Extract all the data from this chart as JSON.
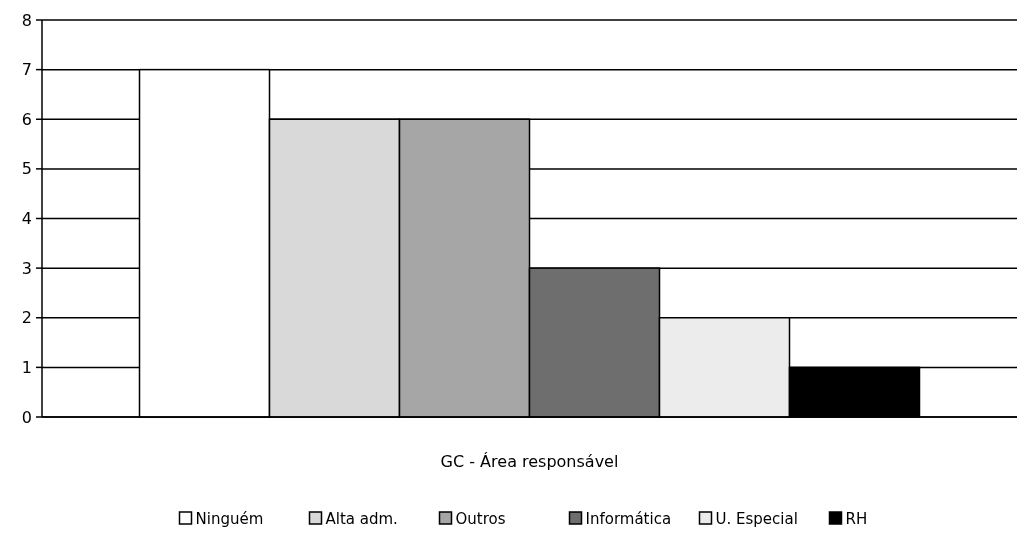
{
  "chart_data": {
    "type": "bar",
    "xlabel": "GC - Área responsável",
    "categories": [
      null
    ],
    "series": [
      {
        "name": "Ninguém",
        "color": "#ffffff",
        "values": [
          7
        ]
      },
      {
        "name": "Alta adm.",
        "color": "#d9d9d9",
        "values": [
          6
        ]
      },
      {
        "name": "Outros",
        "color": "#a6a6a6",
        "values": [
          6
        ]
      },
      {
        "name": "Informática",
        "color": "#6e6e6e",
        "values": [
          3
        ]
      },
      {
        "name": "U. Especial",
        "color": "#ececec",
        "values": [
          2
        ]
      },
      {
        "name": "RH",
        "color": "#000000",
        "values": [
          1
        ]
      }
    ],
    "ylim": [
      0,
      8
    ],
    "yticks": [
      0,
      1,
      2,
      3,
      4,
      5,
      6,
      7,
      8
    ],
    "grid": "y",
    "legend": "bottom"
  }
}
